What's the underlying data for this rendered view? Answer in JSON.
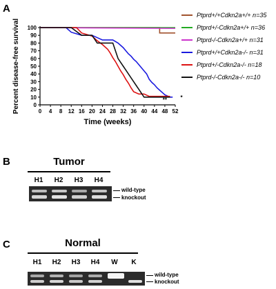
{
  "panel_a": {
    "letter": "A",
    "chart_data": {
      "type": "line",
      "ylabel": "Percent disease-free survival",
      "xlabel": "Time (weeks)",
      "xlim": [
        0,
        52
      ],
      "ylim": [
        0,
        100
      ],
      "x_ticks": [
        "0",
        "4",
        "8",
        "12",
        "16",
        "20",
        "24",
        "28",
        "32",
        "36",
        "40",
        "44",
        "48",
        "52"
      ],
      "y_ticks": [
        "0",
        "10",
        "20",
        "30",
        "40",
        "50",
        "60",
        "70",
        "80",
        "90",
        "100"
      ],
      "series": [
        {
          "name": "Ptprd+/+Cdkn2a+/+ n=35",
          "color": "#a0522d",
          "x": [
            0,
            46,
            46,
            52
          ],
          "y": [
            100,
            100,
            93,
            93
          ]
        },
        {
          "name": "Ptprd+/-Cdkn2a+/+ n=36",
          "color": "#22aa22",
          "x": [
            0,
            52
          ],
          "y": [
            100,
            100
          ]
        },
        {
          "name": "Ptprd-/-Cdkn2a+/+ n=31",
          "color": "#cc33cc",
          "x": [
            0,
            52
          ],
          "y": [
            100,
            99
          ]
        },
        {
          "name": "Ptprd+/+Cdkn2a-/- n=31",
          "color": "#1a1adf",
          "x": [
            0,
            10,
            12,
            16,
            20,
            22,
            24,
            26,
            28,
            30,
            31,
            32,
            33,
            34,
            35,
            36,
            37,
            38,
            39,
            40,
            41,
            42,
            43,
            44,
            45,
            46,
            47,
            48,
            50,
            51
          ],
          "y": [
            100,
            100,
            94,
            90,
            90,
            87,
            84,
            84,
            84,
            80,
            77,
            74,
            70,
            66,
            63,
            59,
            56,
            52,
            48,
            44,
            40,
            33,
            29,
            26,
            22,
            19,
            16,
            13,
            10,
            10
          ]
        },
        {
          "name": "Ptprd+/-Cdkn2a-/- n=18",
          "color": "#dd1111",
          "x": [
            0,
            14,
            16,
            20,
            22,
            24,
            26,
            27,
            28,
            29,
            30,
            31,
            32,
            33,
            34,
            35,
            36,
            38,
            40,
            42,
            44,
            46,
            50
          ],
          "y": [
            100,
            100,
            93,
            89,
            83,
            78,
            72,
            67,
            61,
            56,
            50,
            44,
            39,
            33,
            28,
            22,
            17,
            14,
            14,
            11,
            11,
            11,
            11
          ]
        },
        {
          "name": "Ptprd-/-Cdkn2a-/- n=10",
          "color": "#111111",
          "x": [
            0,
            12,
            16,
            20,
            22,
            28,
            29,
            30,
            31,
            32,
            33,
            34,
            35,
            36,
            37,
            38,
            39,
            40,
            42,
            44,
            46,
            48,
            50
          ],
          "y": [
            100,
            100,
            90,
            90,
            80,
            80,
            70,
            60,
            55,
            50,
            45,
            40,
            35,
            30,
            25,
            20,
            15,
            10,
            10,
            10,
            10,
            10,
            10
          ]
        }
      ],
      "annotations": [
        "**",
        "*"
      ],
      "legend_position": "right"
    }
  },
  "panel_b": {
    "letter": "B",
    "title": "Tumor",
    "lanes": [
      "H1",
      "H2",
      "H3",
      "H4"
    ],
    "band_labels": [
      "wild-type",
      "knockout"
    ]
  },
  "panel_c": {
    "letter": "C",
    "title": "Normal",
    "lanes": [
      "H1",
      "H2",
      "H3",
      "H4",
      "W",
      "K"
    ],
    "band_labels": [
      "wild-type",
      "knockout"
    ]
  }
}
